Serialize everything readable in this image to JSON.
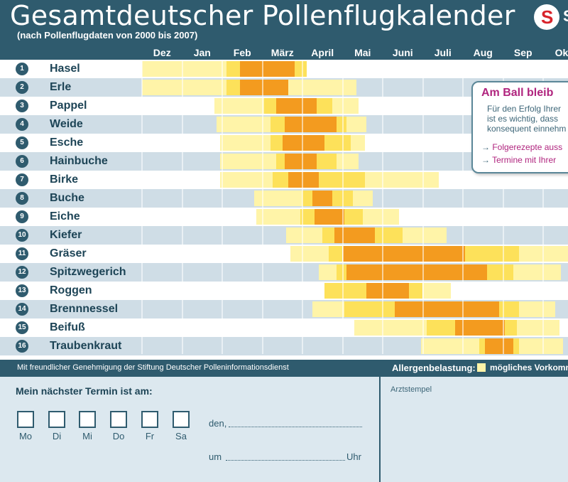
{
  "header": {
    "title": "Gesamtdeutscher Pollenflugkalender",
    "subtitle": "(nach Pollenflugdaten von 2000 bis 2007)",
    "logo_letter": "S",
    "logo_text": "S"
  },
  "colors": {
    "header": "#2f5b6e",
    "band_light": "#ffffff",
    "band_dark": "#cfdde6",
    "possible": "#fff4a8",
    "weak": "#fde15a",
    "moderate": "#f39b1f",
    "strong": "#e8850f"
  },
  "chart_data": {
    "type": "heatmap",
    "title": "Gesamtdeutscher Pollenflugkalender",
    "subtitle": "(nach Pollenflugdaten von 2000 bis 2007)",
    "months": [
      "Dez",
      "Jan",
      "Feb",
      "März",
      "April",
      "Mai",
      "Juni",
      "Juli",
      "Aug",
      "Sep",
      "Okt"
    ],
    "legend_title": "Allergenbelastung:",
    "legend": [
      {
        "level": "possible",
        "label": "mögliches Vorkomn"
      }
    ],
    "plants": [
      {
        "num": "1",
        "name": "Hasel",
        "segments": [
          {
            "from": 0,
            "to": 2.1,
            "level": "possible"
          },
          {
            "from": 2.1,
            "to": 2.45,
            "level": "weak"
          },
          {
            "from": 2.45,
            "to": 3.8,
            "level": "moderate"
          },
          {
            "from": 3.8,
            "to": 4.1,
            "level": "weak"
          }
        ]
      },
      {
        "num": "2",
        "name": "Erle",
        "segments": [
          {
            "from": 0,
            "to": 2.1,
            "level": "possible"
          },
          {
            "from": 2.1,
            "to": 2.45,
            "level": "weak"
          },
          {
            "from": 2.45,
            "to": 3.65,
            "level": "moderate"
          },
          {
            "from": 3.65,
            "to": 5.35,
            "level": "possible"
          }
        ]
      },
      {
        "num": "3",
        "name": "Pappel",
        "segments": [
          {
            "from": 1.8,
            "to": 3.05,
            "level": "possible"
          },
          {
            "from": 3.05,
            "to": 3.35,
            "level": "weak"
          },
          {
            "from": 3.35,
            "to": 4.35,
            "level": "moderate"
          },
          {
            "from": 4.35,
            "to": 4.75,
            "level": "weak"
          },
          {
            "from": 4.75,
            "to": 5.4,
            "level": "possible"
          }
        ]
      },
      {
        "num": "4",
        "name": "Weide",
        "segments": [
          {
            "from": 1.85,
            "to": 3.2,
            "level": "possible"
          },
          {
            "from": 3.2,
            "to": 3.55,
            "level": "weak"
          },
          {
            "from": 3.55,
            "to": 4.85,
            "level": "moderate"
          },
          {
            "from": 4.85,
            "to": 5.1,
            "level": "weak"
          },
          {
            "from": 5.1,
            "to": 5.6,
            "level": "possible"
          }
        ]
      },
      {
        "num": "5",
        "name": "Esche",
        "segments": [
          {
            "from": 1.95,
            "to": 3.2,
            "level": "possible"
          },
          {
            "from": 3.2,
            "to": 3.5,
            "level": "weak"
          },
          {
            "from": 3.5,
            "to": 4.55,
            "level": "moderate"
          },
          {
            "from": 4.55,
            "to": 5.2,
            "level": "weak"
          },
          {
            "from": 5.2,
            "to": 5.55,
            "level": "possible"
          }
        ]
      },
      {
        "num": "6",
        "name": "Hainbuche",
        "segments": [
          {
            "from": 1.95,
            "to": 3.35,
            "level": "possible"
          },
          {
            "from": 3.35,
            "to": 3.55,
            "level": "weak"
          },
          {
            "from": 3.55,
            "to": 4.35,
            "level": "moderate"
          },
          {
            "from": 4.35,
            "to": 4.85,
            "level": "weak"
          },
          {
            "from": 4.85,
            "to": 5.4,
            "level": "possible"
          }
        ]
      },
      {
        "num": "7",
        "name": "Birke",
        "segments": [
          {
            "from": 1.95,
            "to": 3.25,
            "level": "possible"
          },
          {
            "from": 3.25,
            "to": 3.65,
            "level": "weak"
          },
          {
            "from": 3.65,
            "to": 4.4,
            "level": "moderate"
          },
          {
            "from": 4.4,
            "to": 5.55,
            "level": "weak"
          },
          {
            "from": 5.55,
            "to": 7.4,
            "level": "possible"
          }
        ]
      },
      {
        "num": "8",
        "name": "Buche",
        "segments": [
          {
            "from": 2.8,
            "to": 4.0,
            "level": "possible"
          },
          {
            "from": 4.0,
            "to": 4.25,
            "level": "weak"
          },
          {
            "from": 4.25,
            "to": 4.75,
            "level": "moderate"
          },
          {
            "from": 4.75,
            "to": 5.25,
            "level": "weak"
          },
          {
            "from": 5.25,
            "to": 5.75,
            "level": "possible"
          }
        ]
      },
      {
        "num": "9",
        "name": "Eiche",
        "segments": [
          {
            "from": 2.85,
            "to": 3.95,
            "level": "possible"
          },
          {
            "from": 3.95,
            "to": 4.3,
            "level": "weak"
          },
          {
            "from": 4.3,
            "to": 5.05,
            "level": "moderate"
          },
          {
            "from": 5.05,
            "to": 5.5,
            "level": "weak"
          },
          {
            "from": 5.5,
            "to": 6.4,
            "level": "possible"
          }
        ]
      },
      {
        "num": "10",
        "name": "Kiefer",
        "segments": [
          {
            "from": 3.6,
            "to": 4.5,
            "level": "possible"
          },
          {
            "from": 4.5,
            "to": 4.8,
            "level": "weak"
          },
          {
            "from": 4.8,
            "to": 5.8,
            "level": "moderate"
          },
          {
            "from": 5.8,
            "to": 6.5,
            "level": "weak"
          },
          {
            "from": 6.5,
            "to": 7.6,
            "level": "possible"
          }
        ]
      },
      {
        "num": "11",
        "name": "Gräser",
        "segments": [
          {
            "from": 3.7,
            "to": 4.65,
            "level": "possible"
          },
          {
            "from": 4.65,
            "to": 5.0,
            "level": "weak"
          },
          {
            "from": 5.0,
            "to": 8.05,
            "level": "moderate"
          },
          {
            "from": 8.05,
            "to": 9.4,
            "level": "weak"
          },
          {
            "from": 9.4,
            "to": 11.0,
            "level": "possible"
          }
        ]
      },
      {
        "num": "12",
        "name": "Spitzwegerich",
        "segments": [
          {
            "from": 4.4,
            "to": 4.85,
            "level": "possible"
          },
          {
            "from": 4.85,
            "to": 5.1,
            "level": "weak"
          },
          {
            "from": 5.1,
            "to": 8.6,
            "level": "moderate"
          },
          {
            "from": 8.6,
            "to": 9.25,
            "level": "weak"
          },
          {
            "from": 9.25,
            "to": 10.45,
            "level": "possible"
          }
        ]
      },
      {
        "num": "13",
        "name": "Roggen",
        "segments": [
          {
            "from": 4.55,
            "to": 5.6,
            "level": "weak"
          },
          {
            "from": 5.6,
            "to": 6.65,
            "level": "moderate"
          },
          {
            "from": 6.65,
            "to": 7.0,
            "level": "weak"
          },
          {
            "from": 7.0,
            "to": 7.7,
            "level": "possible"
          }
        ]
      },
      {
        "num": "14",
        "name": "Brennnessel",
        "segments": [
          {
            "from": 4.25,
            "to": 5.05,
            "level": "possible"
          },
          {
            "from": 5.05,
            "to": 6.3,
            "level": "weak"
          },
          {
            "from": 6.3,
            "to": 8.9,
            "level": "moderate"
          },
          {
            "from": 8.9,
            "to": 9.4,
            "level": "weak"
          },
          {
            "from": 9.4,
            "to": 10.3,
            "level": "possible"
          }
        ]
      },
      {
        "num": "15",
        "name": "Beifuß",
        "segments": [
          {
            "from": 5.3,
            "to": 7.1,
            "level": "possible"
          },
          {
            "from": 7.1,
            "to": 7.8,
            "level": "weak"
          },
          {
            "from": 7.8,
            "to": 9.05,
            "level": "moderate"
          },
          {
            "from": 9.05,
            "to": 9.35,
            "level": "weak"
          },
          {
            "from": 9.35,
            "to": 10.4,
            "level": "possible"
          }
        ]
      },
      {
        "num": "16",
        "name": "Traubenkraut",
        "segments": [
          {
            "from": 6.95,
            "to": 8.4,
            "level": "possible"
          },
          {
            "from": 8.4,
            "to": 8.55,
            "level": "weak"
          },
          {
            "from": 8.55,
            "to": 9.25,
            "level": "moderate"
          },
          {
            "from": 9.25,
            "to": 9.4,
            "level": "weak"
          },
          {
            "from": 9.4,
            "to": 10.5,
            "level": "possible"
          }
        ]
      }
    ]
  },
  "note": {
    "title": "Am Ball bleib",
    "body": [
      "Für den Erfolg Ihrer",
      "ist es wichtig, dass",
      "konsequent einnehm"
    ],
    "links": [
      "Folgerezepte auss",
      "Termine mit Ihrer"
    ],
    "arrow": "→"
  },
  "footer": {
    "credit": "Mit freundlicher Genehmigung der Stiftung Deutscher Polleninformationsdienst",
    "legend_label": "Allergenbelastung:",
    "legend_text": "mögliches Vorkomn"
  },
  "form": {
    "termin_label": "Mein nächster Termin ist am:",
    "days": [
      "Mo",
      "Di",
      "Mi",
      "Do",
      "Fr",
      "Sa"
    ],
    "den": "den,",
    "um": "um",
    "uhr": "Uhr",
    "stamp_label": "Arztstempel"
  }
}
